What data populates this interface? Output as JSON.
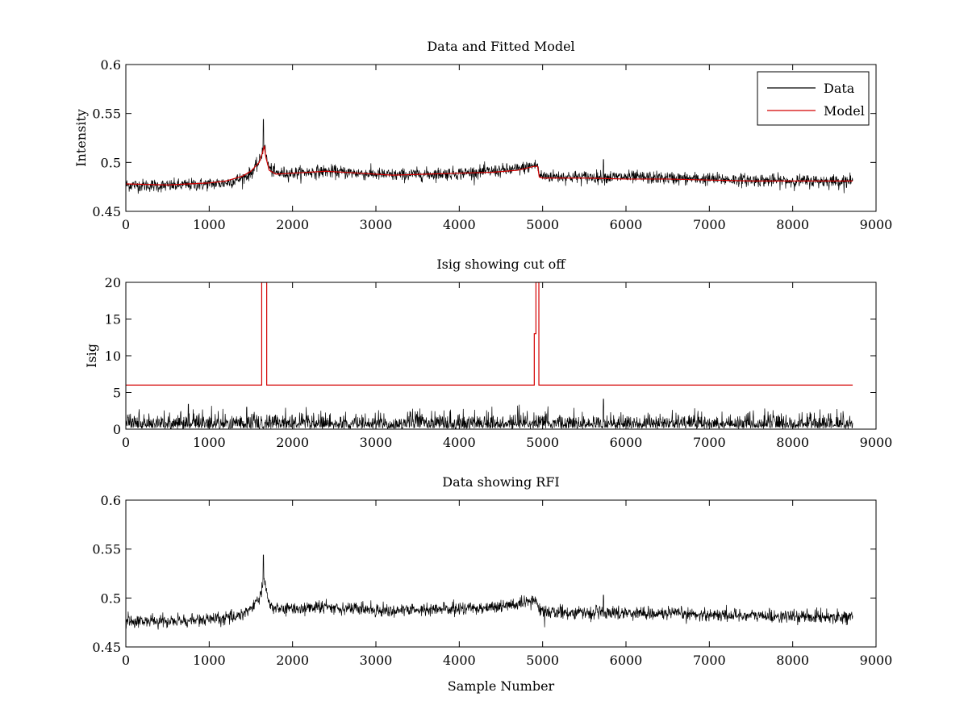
{
  "chart_data": [
    {
      "type": "line",
      "title": "Data and Fitted Model",
      "xlabel": "",
      "ylabel": "Intensity",
      "xlim": [
        0,
        9000
      ],
      "ylim": [
        0.45,
        0.6
      ],
      "xticks": [
        0,
        1000,
        2000,
        3000,
        4000,
        5000,
        6000,
        7000,
        8000,
        9000
      ],
      "yticks": [
        0.45,
        0.5,
        0.55,
        0.6
      ],
      "ytick_labels": [
        "0.45",
        "0.5",
        "0.55",
        "0.6"
      ],
      "grid": false,
      "legend_position": "top-right",
      "series": [
        {
          "name": "Data",
          "color": "#000000",
          "style": "noisy",
          "noise": 0.006,
          "x": [
            0,
            500,
            1000,
            1200,
            1400,
            1500,
            1600,
            1640,
            1660,
            1680,
            1720,
            1800,
            2000,
            2400,
            2800,
            3200,
            3600,
            4000,
            4400,
            4700,
            4900,
            4940,
            4960,
            5000,
            5500,
            6000,
            6500,
            7000,
            7500,
            8000,
            8720
          ],
          "y": [
            0.477,
            0.476,
            0.478,
            0.479,
            0.484,
            0.489,
            0.5,
            0.512,
            0.52,
            0.507,
            0.494,
            0.489,
            0.489,
            0.491,
            0.489,
            0.487,
            0.488,
            0.489,
            0.491,
            0.493,
            0.497,
            0.497,
            0.487,
            0.486,
            0.485,
            0.485,
            0.484,
            0.483,
            0.482,
            0.481,
            0.481
          ],
          "spikes": [
            [
              1650,
              0.544
            ],
            [
              1672,
              0.518
            ],
            [
              5730,
              0.503
            ]
          ]
        },
        {
          "name": "Model",
          "color": "#d40000",
          "style": "line",
          "x": [
            0,
            500,
            1000,
            1200,
            1400,
            1500,
            1600,
            1640,
            1660,
            1680,
            1720,
            1800,
            2000,
            2400,
            2800,
            3200,
            3600,
            4000,
            4400,
            4700,
            4900,
            4940,
            4960,
            5000,
            5500,
            6000,
            6500,
            7000,
            7500,
            8000,
            8720
          ],
          "y": [
            0.478,
            0.477,
            0.479,
            0.481,
            0.486,
            0.491,
            0.5,
            0.51,
            0.517,
            0.505,
            0.492,
            0.488,
            0.489,
            0.491,
            0.489,
            0.487,
            0.488,
            0.489,
            0.49,
            0.492,
            0.496,
            0.496,
            0.485,
            0.484,
            0.484,
            0.483,
            0.483,
            0.482,
            0.481,
            0.481,
            0.481
          ]
        }
      ]
    },
    {
      "type": "line",
      "title": "Isig showing cut off",
      "xlabel": "",
      "ylabel": "Isig",
      "xlim": [
        0,
        9000
      ],
      "ylim": [
        0,
        20
      ],
      "xticks": [
        0,
        1000,
        2000,
        3000,
        4000,
        5000,
        6000,
        7000,
        8000,
        9000
      ],
      "yticks": [
        0,
        5,
        10,
        15,
        20
      ],
      "ytick_labels": [
        "0",
        "5",
        "10",
        "15",
        "20"
      ],
      "grid": false,
      "series": [
        {
          "color": "#000000",
          "style": "noisy-positive",
          "noise": 1.0,
          "x": [
            0,
            8720
          ],
          "y": [
            0.8,
            0.8
          ],
          "spikes": [
            [
              750,
              3.4
            ],
            [
              1450,
              3.0
            ],
            [
              5730,
              4.1
            ],
            [
              4700,
              3.2
            ]
          ]
        },
        {
          "color": "#d40000",
          "style": "line",
          "x": [
            0,
            1630,
            1630,
            1645,
            1645,
            1670,
            1670,
            1690,
            1690,
            4900,
            4900,
            4920,
            4920,
            4935,
            4935,
            4955,
            4955,
            8720
          ],
          "y": [
            6,
            6,
            20,
            20,
            20,
            20,
            20,
            20,
            6,
            6,
            13,
            13,
            20,
            20,
            20,
            20,
            6,
            6
          ]
        }
      ]
    },
    {
      "type": "line",
      "title": "Data showing RFI",
      "xlabel": "Sample Number",
      "ylabel": "",
      "xlim": [
        0,
        9000
      ],
      "ylim": [
        0.45,
        0.6
      ],
      "xticks": [
        0,
        1000,
        2000,
        3000,
        4000,
        5000,
        6000,
        7000,
        8000,
        9000
      ],
      "yticks": [
        0.45,
        0.5,
        0.55,
        0.6
      ],
      "ytick_labels": [
        "0.45",
        "0.5",
        "0.55",
        "0.6"
      ],
      "grid": false,
      "series": [
        {
          "color": "#000000",
          "style": "noisy",
          "noise": 0.006,
          "x": [
            0,
            500,
            1000,
            1200,
            1400,
            1500,
            1600,
            1640,
            1660,
            1680,
            1720,
            1800,
            2000,
            2400,
            2800,
            3200,
            3600,
            4000,
            4400,
            4700,
            4900,
            4940,
            4960,
            5000,
            5500,
            6000,
            6500,
            7000,
            7500,
            8000,
            8720
          ],
          "y": [
            0.477,
            0.476,
            0.478,
            0.479,
            0.484,
            0.489,
            0.5,
            0.512,
            0.52,
            0.507,
            0.494,
            0.489,
            0.489,
            0.491,
            0.489,
            0.487,
            0.488,
            0.489,
            0.491,
            0.493,
            0.497,
            0.497,
            0.487,
            0.486,
            0.485,
            0.485,
            0.484,
            0.483,
            0.482,
            0.481,
            0.481
          ],
          "spikes": [
            [
              1650,
              0.544
            ],
            [
              1672,
              0.518
            ],
            [
              5730,
              0.503
            ]
          ]
        }
      ]
    }
  ]
}
